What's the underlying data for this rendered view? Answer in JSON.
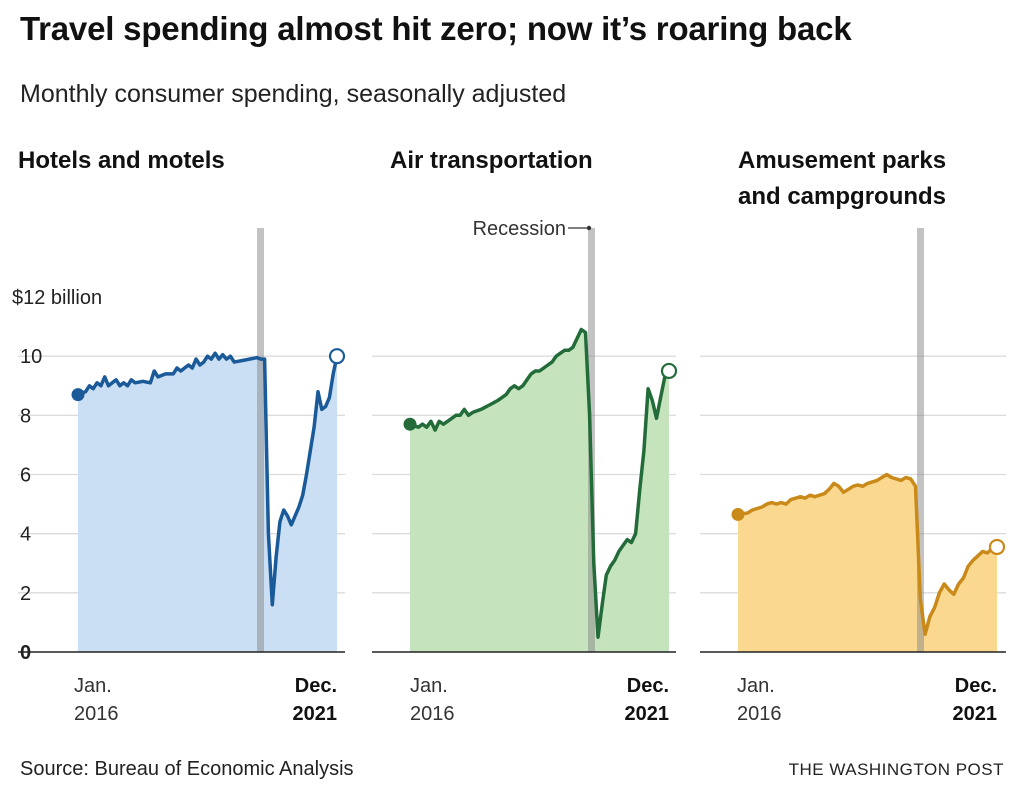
{
  "title": "Travel spending almost hit zero; now it’s roaring back",
  "subtitle": "Monthly consumer spending, seasonally adjusted",
  "source": "Source: Bureau of Economic Analysis",
  "credit": "THE WASHINGTON POST",
  "chart_data": {
    "type": "area",
    "y_unit": "$ billion",
    "ylim": [
      0,
      12
    ],
    "y_ticks": [
      {
        "value": 0,
        "label": "0"
      },
      {
        "value": 2,
        "label": "2"
      },
      {
        "value": 4,
        "label": "4"
      },
      {
        "value": 6,
        "label": "6"
      },
      {
        "value": 8,
        "label": "8"
      },
      {
        "value": 10,
        "label": "10"
      },
      {
        "value": 12,
        "label": "$12 billion"
      }
    ],
    "grid": true,
    "x_start": {
      "month": "Jan.",
      "year": "2016"
    },
    "x_end": {
      "month": "Dec.",
      "year": "2021"
    },
    "months_total": 72,
    "recession": {
      "label": "Recession",
      "start_index": 49,
      "end_index": 50
    },
    "series": [
      {
        "name": "Hotels and motels",
        "title_lines": [
          "Hotels and motels"
        ],
        "line_color": "#1a5a99",
        "fill_color": "#cadef4",
        "keyframes": [
          [
            0,
            8.7
          ],
          [
            2,
            8.8
          ],
          [
            3,
            9.0
          ],
          [
            4,
            8.9
          ],
          [
            5,
            9.1
          ],
          [
            6,
            9.0
          ],
          [
            7,
            9.3
          ],
          [
            8,
            9.0
          ],
          [
            9,
            9.1
          ],
          [
            10,
            9.2
          ],
          [
            11,
            9.0
          ],
          [
            12,
            9.1
          ],
          [
            13,
            9.0
          ],
          [
            14,
            9.2
          ],
          [
            15,
            9.1
          ],
          [
            17,
            9.15
          ],
          [
            19,
            9.1
          ],
          [
            20,
            9.5
          ],
          [
            21,
            9.3
          ],
          [
            23,
            9.4
          ],
          [
            25,
            9.4
          ],
          [
            26,
            9.6
          ],
          [
            27,
            9.5
          ],
          [
            29,
            9.7
          ],
          [
            30,
            9.6
          ],
          [
            31,
            9.9
          ],
          [
            32,
            9.7
          ],
          [
            33,
            9.8
          ],
          [
            34,
            10.0
          ],
          [
            35,
            9.9
          ],
          [
            36,
            10.1
          ],
          [
            37,
            9.9
          ],
          [
            38,
            10.05
          ],
          [
            39,
            9.9
          ],
          [
            40,
            10.0
          ],
          [
            41,
            9.8
          ],
          [
            43,
            9.85
          ],
          [
            45,
            9.9
          ],
          [
            47,
            9.95
          ],
          [
            48,
            9.9
          ],
          [
            49,
            9.9
          ],
          [
            50,
            4.0
          ],
          [
            51,
            1.6
          ],
          [
            52,
            3.2
          ],
          [
            53,
            4.4
          ],
          [
            54,
            4.8
          ],
          [
            55,
            4.6
          ],
          [
            56,
            4.3
          ],
          [
            57,
            4.6
          ],
          [
            58,
            4.9
          ],
          [
            59,
            5.3
          ],
          [
            60,
            6.0
          ],
          [
            61,
            6.8
          ],
          [
            62,
            7.6
          ],
          [
            63,
            8.8
          ],
          [
            64,
            8.2
          ],
          [
            65,
            8.3
          ],
          [
            66,
            8.6
          ],
          [
            67,
            9.4
          ],
          [
            68,
            10.0
          ]
        ],
        "end_value": 10.0
      },
      {
        "name": "Air transportation",
        "title_lines": [
          "Air transportation"
        ],
        "line_color": "#236c3a",
        "fill_color": "#c5e4bd",
        "keyframes": [
          [
            0,
            7.7
          ],
          [
            2,
            7.6
          ],
          [
            3,
            7.7
          ],
          [
            4,
            7.6
          ],
          [
            5,
            7.8
          ],
          [
            6,
            7.5
          ],
          [
            7,
            7.8
          ],
          [
            8,
            7.7
          ],
          [
            9,
            7.8
          ],
          [
            10,
            7.9
          ],
          [
            11,
            8.0
          ],
          [
            12,
            8.0
          ],
          [
            13,
            8.2
          ],
          [
            14,
            8.0
          ],
          [
            15,
            8.1
          ],
          [
            17,
            8.2
          ],
          [
            19,
            8.35
          ],
          [
            21,
            8.5
          ],
          [
            22,
            8.6
          ],
          [
            23,
            8.7
          ],
          [
            24,
            8.9
          ],
          [
            25,
            9.0
          ],
          [
            26,
            8.9
          ],
          [
            27,
            9.0
          ],
          [
            28,
            9.2
          ],
          [
            29,
            9.4
          ],
          [
            30,
            9.5
          ],
          [
            31,
            9.5
          ],
          [
            32,
            9.6
          ],
          [
            33,
            9.7
          ],
          [
            34,
            9.8
          ],
          [
            35,
            10.0
          ],
          [
            36,
            10.1
          ],
          [
            37,
            10.2
          ],
          [
            38,
            10.2
          ],
          [
            39,
            10.3
          ],
          [
            40,
            10.6
          ],
          [
            41,
            10.9
          ],
          [
            42,
            10.8
          ],
          [
            43,
            8.0
          ],
          [
            44,
            3.0
          ],
          [
            45,
            0.5
          ],
          [
            46,
            1.6
          ],
          [
            47,
            2.6
          ],
          [
            48,
            2.9
          ],
          [
            49,
            3.1
          ],
          [
            50,
            3.4
          ],
          [
            51,
            3.6
          ],
          [
            52,
            3.8
          ],
          [
            53,
            3.7
          ],
          [
            54,
            4.0
          ],
          [
            55,
            5.5
          ],
          [
            56,
            6.8
          ],
          [
            57,
            8.9
          ],
          [
            58,
            8.5
          ],
          [
            59,
            7.9
          ],
          [
            60,
            8.6
          ],
          [
            61,
            9.3
          ],
          [
            62,
            9.5
          ]
        ],
        "end_value": 9.5
      },
      {
        "name": "Amusement parks and campgrounds",
        "title_lines": [
          "Amusement parks",
          "and campgrounds"
        ],
        "line_color": "#c98a1a",
        "fill_color": "#fbd890",
        "keyframes": [
          [
            0,
            4.65
          ],
          [
            2,
            4.7
          ],
          [
            3,
            4.8
          ],
          [
            4,
            4.85
          ],
          [
            5,
            4.9
          ],
          [
            6,
            5.0
          ],
          [
            7,
            5.05
          ],
          [
            8,
            5.0
          ],
          [
            9,
            5.05
          ],
          [
            10,
            5.0
          ],
          [
            11,
            5.15
          ],
          [
            12,
            5.2
          ],
          [
            13,
            5.25
          ],
          [
            14,
            5.2
          ],
          [
            15,
            5.3
          ],
          [
            16,
            5.25
          ],
          [
            17,
            5.3
          ],
          [
            18,
            5.35
          ],
          [
            19,
            5.5
          ],
          [
            20,
            5.7
          ],
          [
            21,
            5.6
          ],
          [
            22,
            5.4
          ],
          [
            23,
            5.5
          ],
          [
            24,
            5.6
          ],
          [
            25,
            5.65
          ],
          [
            26,
            5.6
          ],
          [
            27,
            5.7
          ],
          [
            28,
            5.75
          ],
          [
            29,
            5.8
          ],
          [
            30,
            5.9
          ],
          [
            31,
            6.0
          ],
          [
            32,
            5.9
          ],
          [
            33,
            5.85
          ],
          [
            34,
            5.8
          ],
          [
            35,
            5.9
          ],
          [
            36,
            5.85
          ],
          [
            37,
            5.6
          ],
          [
            38,
            1.8
          ],
          [
            39,
            0.6
          ],
          [
            40,
            1.2
          ],
          [
            41,
            1.5
          ],
          [
            42,
            2.0
          ],
          [
            43,
            2.3
          ],
          [
            44,
            2.1
          ],
          [
            45,
            1.95
          ],
          [
            46,
            2.3
          ],
          [
            47,
            2.5
          ],
          [
            48,
            2.9
          ],
          [
            49,
            3.1
          ],
          [
            50,
            3.25
          ],
          [
            51,
            3.4
          ],
          [
            52,
            3.35
          ],
          [
            53,
            3.5
          ],
          [
            54,
            3.55
          ]
        ],
        "end_value": 3.55
      }
    ]
  }
}
